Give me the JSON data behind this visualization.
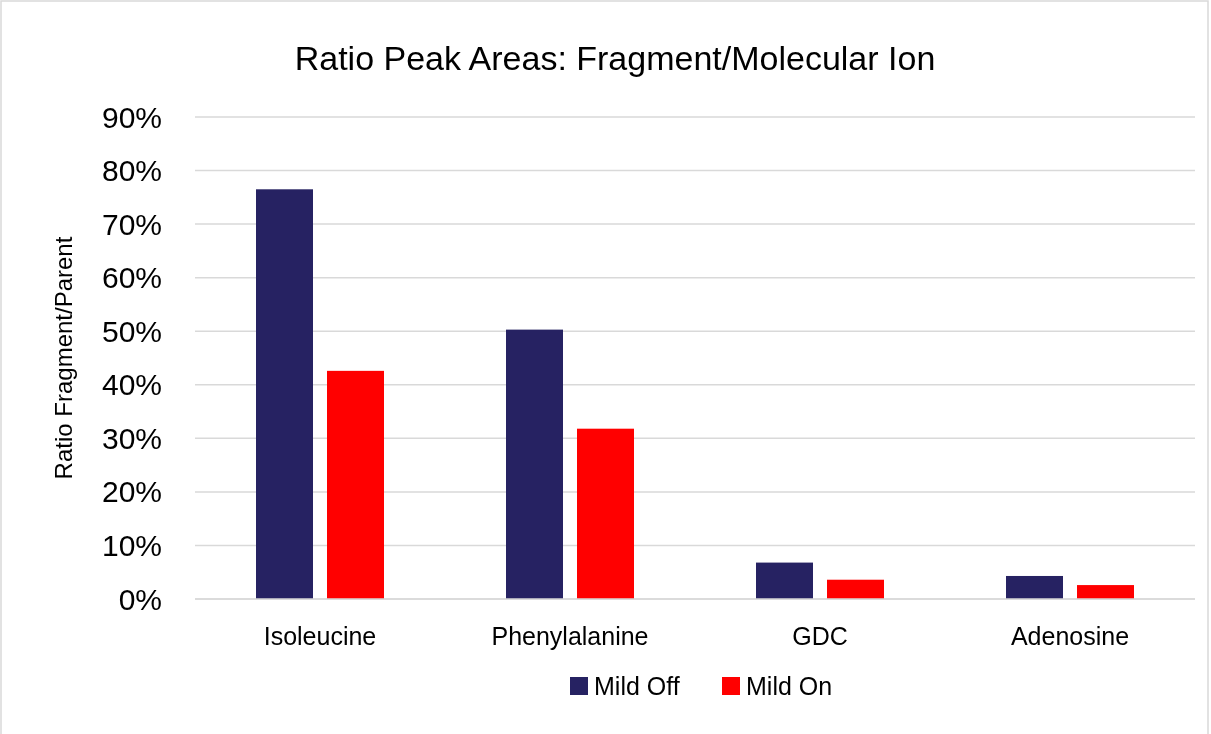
{
  "chart_data": {
    "type": "bar",
    "title": "Ratio Peak Areas: Fragment/Molecular Ion",
    "ylabel": "Ratio Fragment/Parent",
    "categories": [
      "Isoleucine",
      "Phenylalanine",
      "GDC",
      "Adenosine"
    ],
    "series": [
      {
        "name": "Mild Off",
        "color": "#262262",
        "values": [
          76.5,
          50.3,
          6.8,
          4.3
        ]
      },
      {
        "name": "Mild On",
        "color": "#ff0000",
        "values": [
          42.6,
          31.8,
          3.6,
          2.6
        ]
      }
    ],
    "ylim": [
      0,
      90
    ],
    "yticks": [
      {
        "value": 0,
        "label": "0%"
      },
      {
        "value": 10,
        "label": "10%"
      },
      {
        "value": 20,
        "label": "20%"
      },
      {
        "value": 30,
        "label": "30%"
      },
      {
        "value": 40,
        "label": "40%"
      },
      {
        "value": 50,
        "label": "50%"
      },
      {
        "value": 60,
        "label": "60%"
      },
      {
        "value": 70,
        "label": "70%"
      },
      {
        "value": 80,
        "label": "80%"
      },
      {
        "value": 90,
        "label": "90%"
      }
    ],
    "grid": "y",
    "legend": "bottom"
  }
}
